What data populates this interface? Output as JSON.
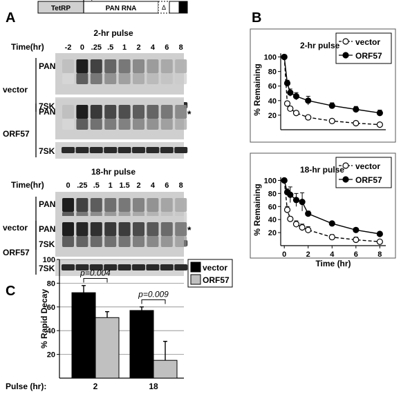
{
  "panel_labels": {
    "a": "A",
    "b": "B",
    "c": "C"
  },
  "construct": {
    "promoter": "TetRP",
    "gene": "PAN RNA",
    "element": "Δ"
  },
  "gels": {
    "time_label": "Time(hr)",
    "gel1": {
      "title": "2-hr pulse",
      "times": [
        "-2",
        "0",
        ".25",
        ".5",
        "1",
        "2",
        "4",
        "6",
        "8"
      ],
      "rows": {
        "vector": "vector",
        "orf57": "ORF57",
        "pan": "PAN",
        "sk": "7SK"
      },
      "pan_vector_intensity": [
        0.05,
        0.95,
        0.75,
        0.55,
        0.45,
        0.35,
        0.25,
        0.18,
        0.12
      ],
      "pan_orf57_intensity": [
        0.05,
        0.95,
        0.8,
        0.72,
        0.68,
        0.6,
        0.55,
        0.45,
        0.35
      ]
    },
    "gel2": {
      "title": "18-hr pulse",
      "times": [
        "0",
        ".25",
        ".5",
        "1",
        "1.5",
        "2",
        "4",
        "6",
        "8"
      ],
      "rows": {
        "vector": "vector",
        "orf57": "ORF57",
        "pan": "PAN",
        "sk": "7SK"
      },
      "pan_vector_intensity": [
        0.95,
        0.75,
        0.6,
        0.5,
        0.45,
        0.38,
        0.3,
        0.2,
        0.15
      ],
      "pan_orf57_intensity": [
        0.95,
        0.9,
        0.85,
        0.8,
        0.78,
        0.7,
        0.62,
        0.52,
        0.42
      ]
    },
    "asterisk": "*"
  },
  "chart_data": [
    {
      "type": "line",
      "title": "2-hr pulse",
      "xlabel": "",
      "ylabel": "% Remaining",
      "yticks": [
        20,
        40,
        60,
        80,
        100
      ],
      "ylim": [
        0,
        110
      ],
      "xlim": [
        -0.3,
        8.5
      ],
      "legend": "top-right",
      "series": [
        {
          "name": "vector",
          "marker": "open",
          "dash": true,
          "x": [
            0,
            0.25,
            0.5,
            1,
            2,
            4,
            6,
            8
          ],
          "y": [
            100,
            36,
            29,
            23,
            17,
            12,
            9,
            7
          ],
          "err": [
            0,
            3,
            3,
            2,
            2,
            1,
            1,
            1
          ]
        },
        {
          "name": "ORF57",
          "marker": "filled",
          "dash": false,
          "x": [
            0,
            0.25,
            0.5,
            1,
            2,
            4,
            6,
            8
          ],
          "y": [
            100,
            64,
            51,
            46,
            40,
            33,
            28,
            23
          ],
          "err": [
            0,
            4,
            5,
            5,
            6,
            4,
            4,
            4
          ]
        }
      ]
    },
    {
      "type": "line",
      "title": "18-hr pulse",
      "xlabel": "Time (hr)",
      "ylabel": "% Remaining",
      "xticks": [
        0,
        2,
        4,
        6,
        8
      ],
      "yticks": [
        20,
        40,
        60,
        80,
        100
      ],
      "ylim": [
        0,
        110
      ],
      "xlim": [
        -0.3,
        8.5
      ],
      "legend": "top-right",
      "series": [
        {
          "name": "vector",
          "marker": "open",
          "dash": true,
          "x": [
            0,
            0.25,
            0.5,
            1,
            1.5,
            2,
            4,
            6,
            8
          ],
          "y": [
            100,
            55,
            41,
            33,
            28,
            24,
            13,
            9,
            6
          ],
          "err": [
            0,
            5,
            3,
            5,
            5,
            5,
            4,
            4,
            2
          ]
        },
        {
          "name": "ORF57",
          "marker": "filled",
          "dash": false,
          "x": [
            0,
            0.25,
            0.5,
            1,
            1.5,
            2,
            4,
            6,
            8
          ],
          "y": [
            100,
            82,
            78,
            70,
            67,
            49,
            34,
            24,
            18
          ],
          "err": [
            0,
            5,
            12,
            10,
            14,
            4,
            3,
            2,
            2
          ]
        }
      ]
    },
    {
      "type": "bar",
      "title": "",
      "ylabel": "% Rapid Decay",
      "xlabel": "Pulse (hr):",
      "categories": [
        "2",
        "18"
      ],
      "yticks": [
        20,
        40,
        60,
        80,
        100
      ],
      "ylim": [
        0,
        100
      ],
      "legend": "right",
      "series": [
        {
          "name": "vector",
          "color": "#000000",
          "values": [
            72,
            57
          ],
          "err": [
            6,
            3
          ]
        },
        {
          "name": "ORF57",
          "color": "#c0c0c0",
          "values": [
            51,
            15
          ],
          "err": [
            5,
            16
          ]
        }
      ],
      "annotations": [
        "p=0.004",
        "p=0.009"
      ]
    }
  ]
}
